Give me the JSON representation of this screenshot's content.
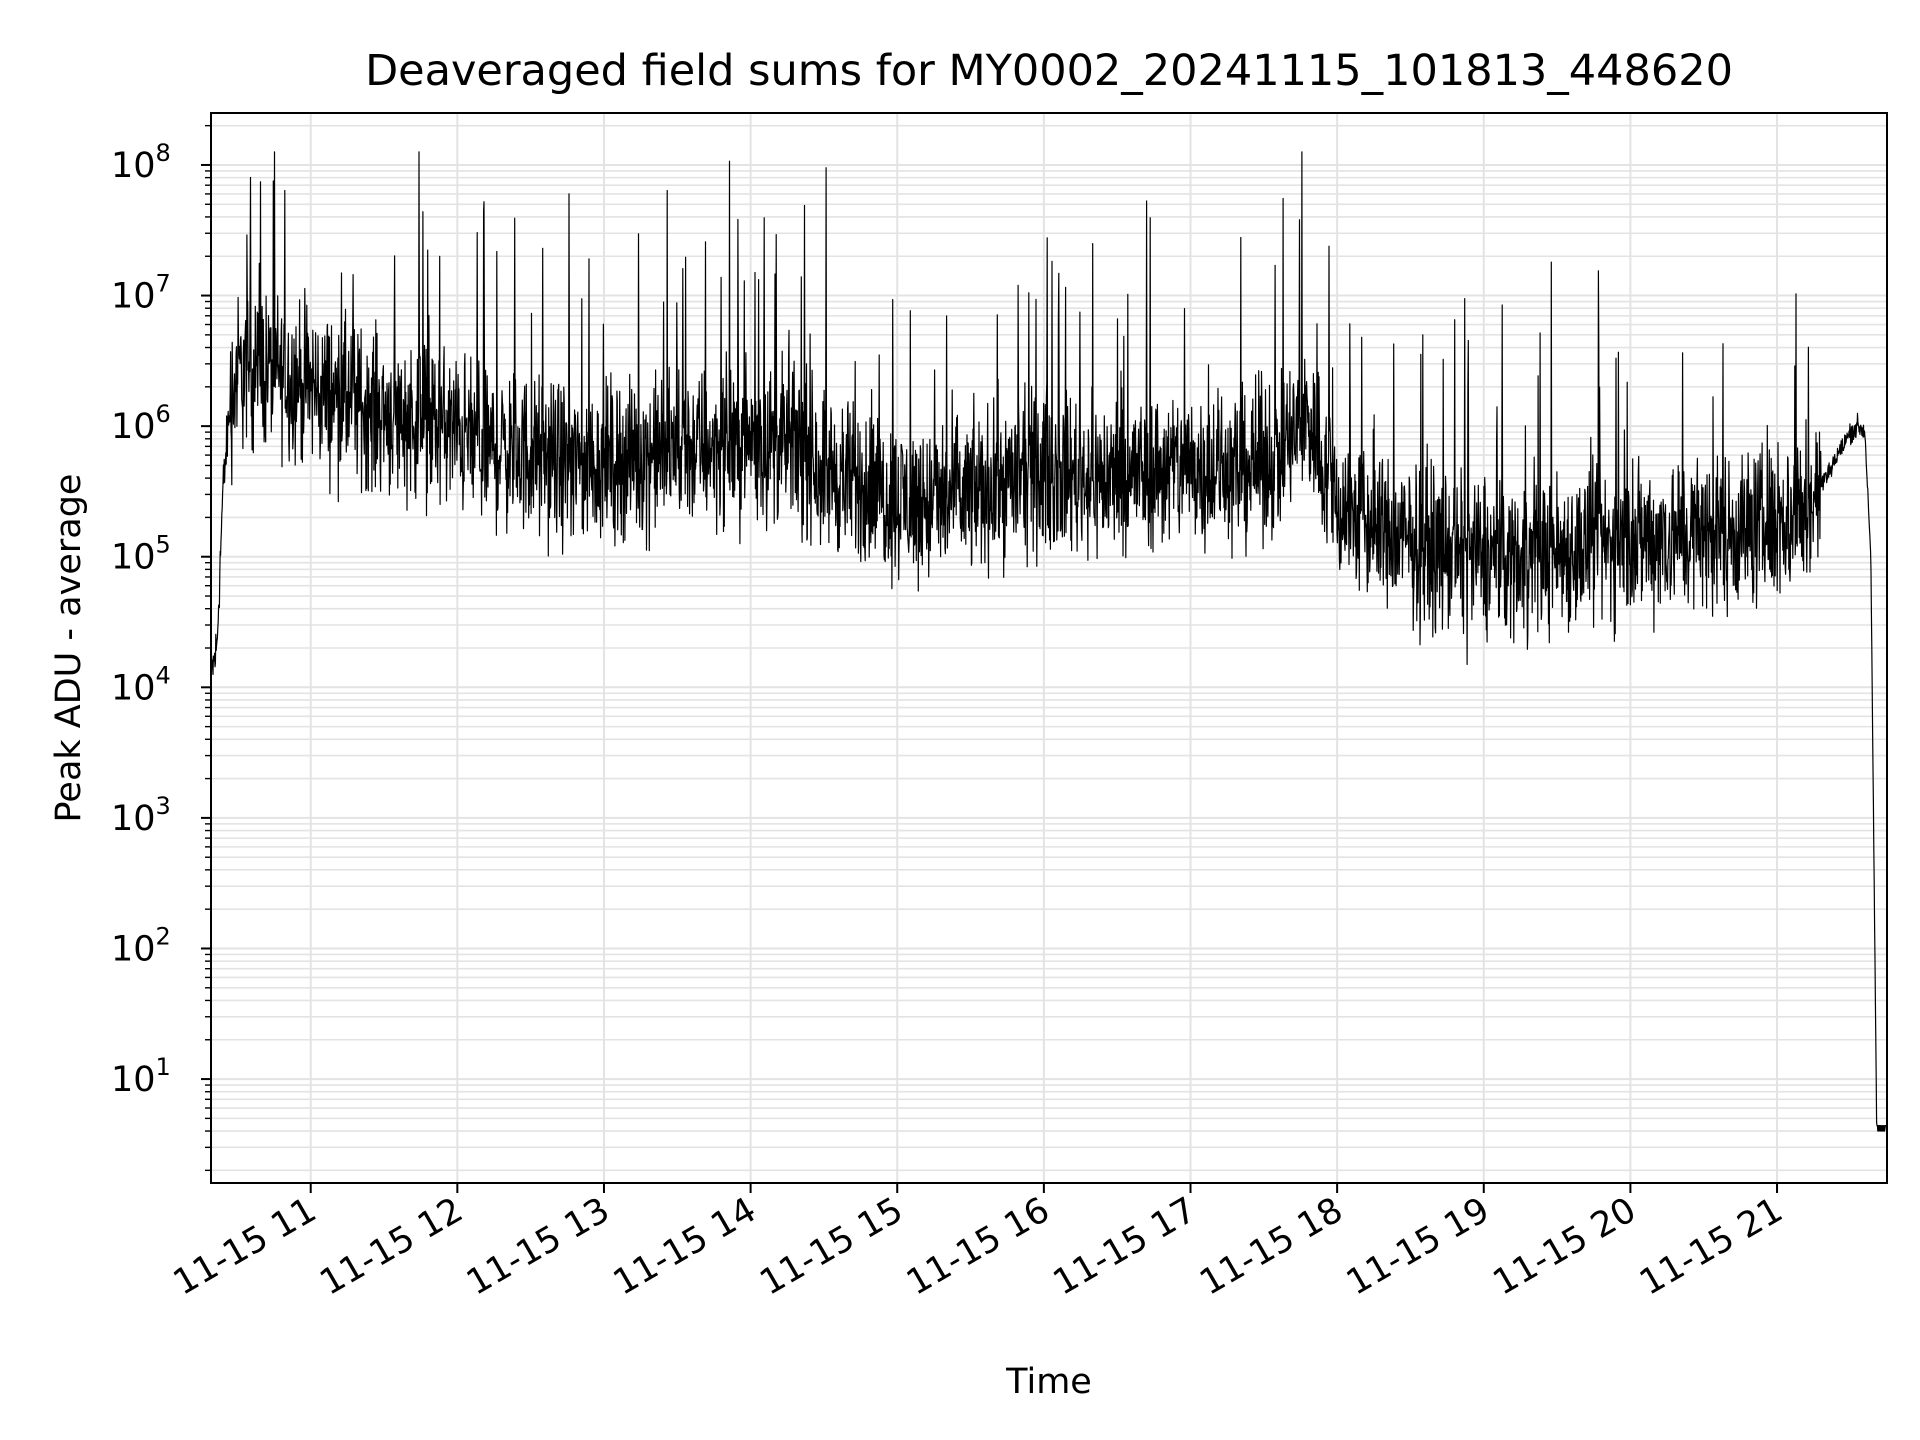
{
  "chart_data": {
    "type": "line",
    "title": "Deaveraged field sums for MY0002_20241115_101813_448620",
    "xlabel": "Time",
    "ylabel": "Peak ADU - average",
    "yscale": "log",
    "ylim": [
      1.6,
      250000000
    ],
    "xlim_hours": [
      10.32,
      21.75
    ],
    "grid": true,
    "legend": "none",
    "line_color": "#000000",
    "x_tick_labels": [
      "11-15 11",
      "11-15 12",
      "11-15 13",
      "11-15 14",
      "11-15 15",
      "11-15 16",
      "11-15 17",
      "11-15 18",
      "11-15 19",
      "11-15 20",
      "11-15 21"
    ],
    "x_tick_hours": [
      11,
      12,
      13,
      14,
      15,
      16,
      17,
      18,
      19,
      20,
      21
    ],
    "y_tick_base": "10",
    "y_tick_exponents": [
      "1",
      "2",
      "3",
      "4",
      "5",
      "6",
      "7",
      "8"
    ],
    "series": [
      {
        "values_approx": {
          "x_hours": [
            10.32,
            10.36,
            10.4,
            10.45,
            10.5,
            10.6,
            10.8,
            11.0,
            11.3,
            11.6,
            11.9,
            12.2,
            12.5,
            12.8,
            13.1,
            13.4,
            13.7,
            14.0,
            14.3,
            14.6,
            14.9,
            15.2,
            15.5,
            15.8,
            16.1,
            16.4,
            16.7,
            17.0,
            17.3,
            17.6,
            17.8,
            18.0,
            18.3,
            18.6,
            18.9,
            19.2,
            19.5,
            19.8,
            20.1,
            20.4,
            20.7,
            21.0,
            21.2,
            21.35,
            21.45,
            21.5,
            21.55,
            21.6,
            21.64,
            21.68,
            21.75
          ],
          "median_y": [
            12000,
            20000,
            300000,
            1500000,
            2500000,
            3000000,
            2500000,
            2000000,
            1500000,
            1200000,
            1000000,
            700000,
            600000,
            500000,
            550000,
            650000,
            700000,
            800000,
            700000,
            400000,
            300000,
            250000,
            300000,
            400000,
            450000,
            400000,
            450000,
            500000,
            450000,
            600000,
            1200000,
            250000,
            150000,
            120000,
            100000,
            100000,
            110000,
            120000,
            140000,
            150000,
            160000,
            180000,
            220000,
            450000,
            700000,
            900000,
            1000000,
            900000,
            100000,
            4,
            4
          ]
        }
      }
    ]
  }
}
